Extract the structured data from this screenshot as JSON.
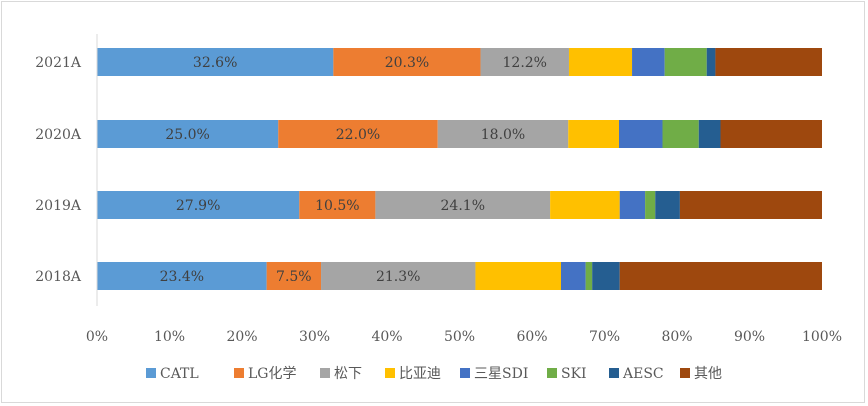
{
  "chart_data": {
    "type": "bar",
    "orientation": "horizontal",
    "stacked": "percent",
    "categories": [
      "2018A",
      "2019A",
      "2020A",
      "2021A"
    ],
    "xlim": [
      0,
      100
    ],
    "x_ticks": [
      "0%",
      "10%",
      "20%",
      "30%",
      "40%",
      "50%",
      "60%",
      "70%",
      "80%",
      "90%",
      "100%"
    ],
    "grid": false,
    "legend": "bottom",
    "series": [
      {
        "name": "CATL",
        "color": "#5b9bd5",
        "values": [
          23.4,
          27.9,
          25.0,
          32.6
        ],
        "labels": [
          "23.4%",
          "27.9%",
          "25.0%",
          "32.6%"
        ]
      },
      {
        "name": "LG化学",
        "color": "#ed7d31",
        "values": [
          7.5,
          10.5,
          22.0,
          20.3
        ],
        "labels": [
          "7.5%",
          "10.5%",
          "22.0%",
          "20.3%"
        ]
      },
      {
        "name": "松下",
        "color": "#a5a5a5",
        "values": [
          21.3,
          24.1,
          18.0,
          12.2
        ],
        "labels": [
          "21.3%",
          "24.1%",
          "18.0%",
          "12.2%"
        ]
      },
      {
        "name": "比亚迪",
        "color": "#ffc000",
        "values": [
          11.8,
          9.6,
          7.0,
          8.7
        ],
        "labels": [
          "",
          "",
          "",
          ""
        ]
      },
      {
        "name": "三星SDI",
        "color": "#4472c4",
        "values": [
          3.4,
          3.5,
          6.0,
          4.5
        ],
        "labels": [
          "",
          "",
          "",
          ""
        ]
      },
      {
        "name": "SKI",
        "color": "#70ad47",
        "values": [
          0.9,
          1.4,
          5.0,
          5.8
        ],
        "labels": [
          "",
          "",
          "",
          ""
        ]
      },
      {
        "name": "AESC",
        "color": "#255e91",
        "values": [
          3.8,
          3.4,
          3.0,
          1.2
        ],
        "labels": [
          "",
          "",
          "",
          ""
        ]
      },
      {
        "name": "其他",
        "color": "#9e480e",
        "values": [
          27.9,
          19.6,
          14.0,
          14.7
        ],
        "labels": [
          "",
          "",
          "",
          ""
        ]
      }
    ]
  }
}
